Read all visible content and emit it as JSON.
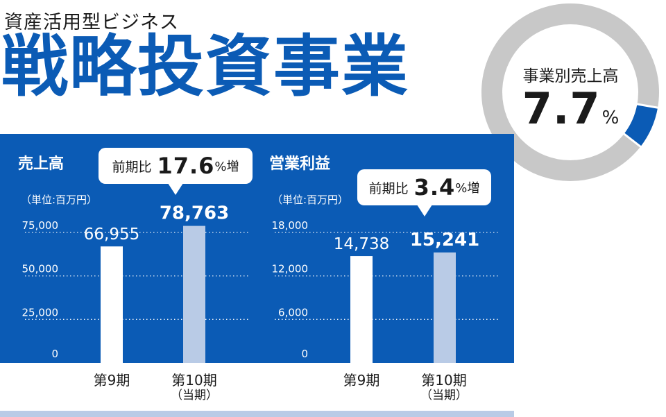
{
  "header": {
    "subtitle": "資産活用型ビジネス",
    "title": "戦略投資事業"
  },
  "donut": {
    "label": "事業別売上高",
    "value": "7.7",
    "unit": "%",
    "share": 0.077,
    "colors": {
      "segment": "#0b5bb5",
      "rest": "#c8c8c8"
    }
  },
  "colors": {
    "panel": "#0b5bb5",
    "current_bar": "#b9cbe6",
    "prior_bar": "#ffffff"
  },
  "chart_data": [
    {
      "type": "bar",
      "title": "売上高",
      "unit_label": "（単位:百万円）",
      "categories": [
        "第9期",
        "第10期"
      ],
      "category_sub": [
        "",
        "（当期）"
      ],
      "values": [
        66955,
        78763
      ],
      "value_labels": [
        "66,955",
        "78,763"
      ],
      "ylim": [
        0,
        75000
      ],
      "yticks": [
        0,
        25000,
        50000,
        75000
      ],
      "ytick_labels": [
        "0",
        "25,000",
        "50,000",
        "75,000"
      ],
      "grid": true,
      "callout": {
        "label": "前期比",
        "pct": "17.6",
        "suffix": "%増"
      }
    },
    {
      "type": "bar",
      "title": "営業利益",
      "unit_label": "（単位:百万円）",
      "categories": [
        "第9期",
        "第10期"
      ],
      "category_sub": [
        "",
        "（当期）"
      ],
      "values": [
        14738,
        15241
      ],
      "value_labels": [
        "14,738",
        "15,241"
      ],
      "ylim": [
        0,
        18000
      ],
      "yticks": [
        0,
        6000,
        12000,
        18000
      ],
      "ytick_labels": [
        "0",
        "6,000",
        "12,000",
        "18,000"
      ],
      "grid": true,
      "callout": {
        "label": "前期比",
        "pct": "3.4",
        "suffix": "%増"
      }
    }
  ]
}
